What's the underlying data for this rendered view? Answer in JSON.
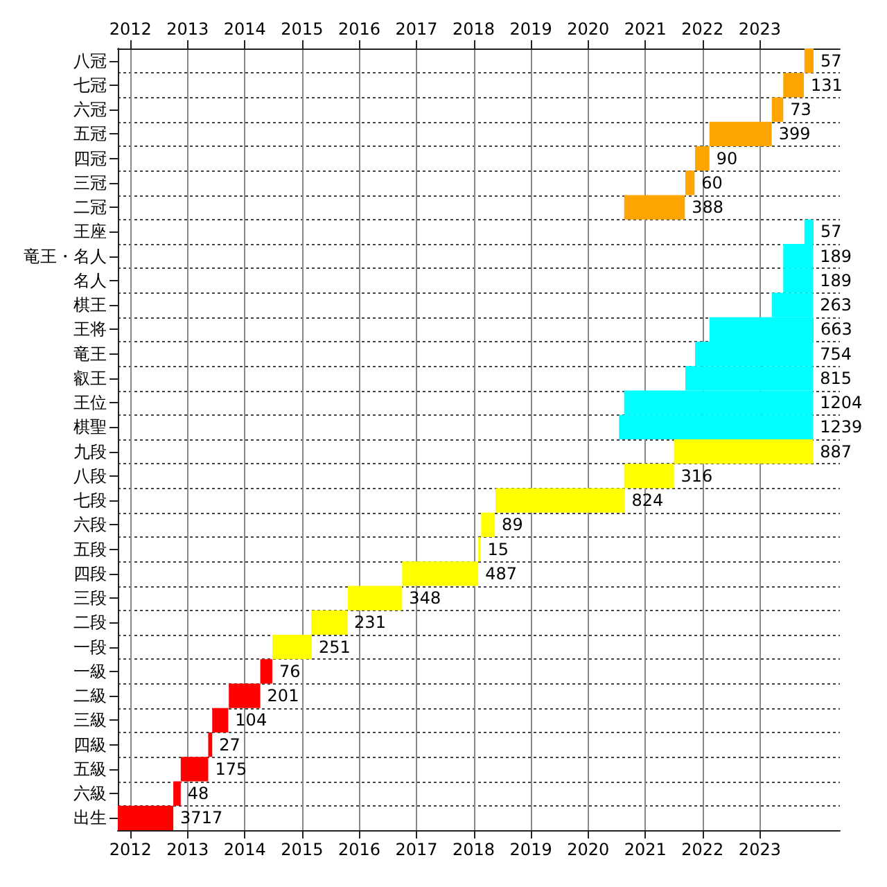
{
  "chart_data": {
    "type": "bar",
    "orientation": "horizontal",
    "categories": [
      "八冠",
      "七冠",
      "六冠",
      "五冠",
      "四冠",
      "三冠",
      "二冠",
      "王座",
      "竜王・名人",
      "名人",
      "棋王",
      "王将",
      "竜王",
      "叡王",
      "王位",
      "棋聖",
      "九段",
      "八段",
      "七段",
      "六段",
      "五段",
      "四段",
      "三段",
      "二段",
      "一段",
      "一級",
      "二級",
      "三級",
      "四級",
      "五級",
      "六級",
      "出生"
    ],
    "values": [
      0.16,
      0.36,
      0.2,
      1.09,
      0.25,
      0.16,
      1.06,
      0.16,
      0.52,
      0.52,
      0.72,
      1.82,
      2.06,
      2.23,
      3.3,
      3.39,
      2.43,
      0.87,
      2.26,
      0.24,
      0.04,
      1.33,
      0.95,
      0.63,
      0.69,
      0.21,
      0.55,
      0.28,
      0.07,
      0.48,
      0.13,
      10.18
    ],
    "base": [
      2023.78,
      2023.41,
      2023.21,
      2022.12,
      2021.87,
      2021.7,
      2020.63,
      2023.78,
      2023.41,
      2023.41,
      2023.21,
      2022.12,
      2021.87,
      2021.7,
      2020.63,
      2020.54,
      2021.5,
      2020.63,
      2018.38,
      2018.13,
      2018.08,
      2016.75,
      2015.8,
      2015.16,
      2014.48,
      2014.27,
      2013.72,
      2013.43,
      2013.36,
      2012.88,
      2012.75,
      2002.57
    ],
    "colors": [
      "#ffa500",
      "#ffa500",
      "#ffa500",
      "#ffa500",
      "#ffa500",
      "#ffa500",
      "#ffa500",
      "#00ffff",
      "#00ffff",
      "#00ffff",
      "#00ffff",
      "#00ffff",
      "#00ffff",
      "#00ffff",
      "#00ffff",
      "#00ffff",
      "#ffff00",
      "#ffff00",
      "#ffff00",
      "#ffff00",
      "#ffff00",
      "#ffff00",
      "#ffff00",
      "#ffff00",
      "#ffff00",
      "#ff0000",
      "#ff0000",
      "#ff0000",
      "#ff0000",
      "#ff0000",
      "#ff0000",
      "#ff0000"
    ],
    "annotations": [
      {
        "text": "57",
        "x": 2023.94,
        "y": "八冠"
      },
      {
        "text": "131",
        "x": 2023.77,
        "y": "七冠"
      },
      {
        "text": "73",
        "x": 2023.41,
        "y": "六冠"
      },
      {
        "text": "399",
        "x": 2023.21,
        "y": "五冠"
      },
      {
        "text": "90",
        "x": 2022.12,
        "y": "四冠"
      },
      {
        "text": "60",
        "x": 2021.86,
        "y": "三冠"
      },
      {
        "text": "388",
        "x": 2021.69,
        "y": "二冠"
      },
      {
        "text": "57",
        "x": 2023.94,
        "y": "王座"
      },
      {
        "text": "189",
        "x": 2023.93,
        "y": "竜王・名人"
      },
      {
        "text": "189",
        "x": 2023.93,
        "y": "名人"
      },
      {
        "text": "263",
        "x": 2023.93,
        "y": "棋王"
      },
      {
        "text": "663",
        "x": 2023.94,
        "y": "王将"
      },
      {
        "text": "754",
        "x": 2023.93,
        "y": "竜王"
      },
      {
        "text": "815",
        "x": 2023.93,
        "y": "叡王"
      },
      {
        "text": "1204",
        "x": 2023.93,
        "y": "王位"
      },
      {
        "text": "1239",
        "x": 2023.93,
        "y": "棋聖"
      },
      {
        "text": "887",
        "x": 2023.93,
        "y": "九段"
      },
      {
        "text": "316",
        "x": 2021.5,
        "y": "八段"
      },
      {
        "text": "824",
        "x": 2020.64,
        "y": "七段"
      },
      {
        "text": "89",
        "x": 2018.37,
        "y": "六段"
      },
      {
        "text": "15",
        "x": 2018.12,
        "y": "五段"
      },
      {
        "text": "487",
        "x": 2018.08,
        "y": "四段"
      },
      {
        "text": "348",
        "x": 2016.75,
        "y": "三段"
      },
      {
        "text": "231",
        "x": 2015.79,
        "y": "二段"
      },
      {
        "text": "251",
        "x": 2015.17,
        "y": "一段"
      },
      {
        "text": "76",
        "x": 2014.48,
        "y": "一級"
      },
      {
        "text": "201",
        "x": 2014.27,
        "y": "二級"
      },
      {
        "text": "104",
        "x": 2013.71,
        "y": "三級"
      },
      {
        "text": "27",
        "x": 2013.43,
        "y": "四級"
      },
      {
        "text": "175",
        "x": 2013.36,
        "y": "五級"
      },
      {
        "text": "48",
        "x": 2012.88,
        "y": "六級"
      },
      {
        "text": "3717",
        "x": 2012.75,
        "y": "出生"
      }
    ],
    "xlim": [
      2011.78,
      2024.4
    ],
    "xticks": [
      2012,
      2013,
      2014,
      2015,
      2016,
      2017,
      2018,
      2019,
      2020,
      2021,
      2022,
      2023
    ],
    "x2lim": [
      2011.78,
      2024.4
    ],
    "x2ticks": [
      2012,
      2013,
      2014,
      2015,
      2016,
      2017,
      2018,
      2019,
      2020,
      2021,
      2022,
      2023
    ],
    "grid": true
  }
}
